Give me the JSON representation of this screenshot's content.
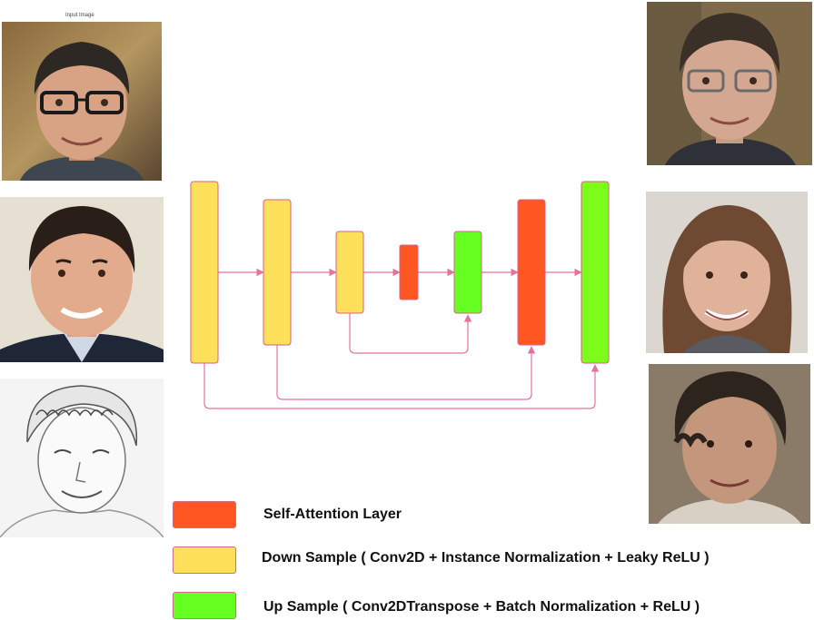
{
  "input_caption": "Input Image",
  "colors": {
    "self_attention": "#ff5722",
    "down_sample": "#ffe05a",
    "up_sample": "#66ff22",
    "connector": "#e8709a",
    "block_border": "#d9608a"
  },
  "inputs": [
    {
      "name": "input-face-man-glasses"
    },
    {
      "name": "input-face-man-dark-hair"
    },
    {
      "name": "input-sketch-face"
    }
  ],
  "outputs": [
    {
      "name": "output-face-man-glasses"
    },
    {
      "name": "output-face-woman"
    },
    {
      "name": "output-face-person-sketch-result"
    }
  ],
  "blocks": [
    {
      "name": "down-sample-block-1",
      "type": "down_sample"
    },
    {
      "name": "down-sample-block-2",
      "type": "down_sample"
    },
    {
      "name": "down-sample-block-3",
      "type": "down_sample"
    },
    {
      "name": "self-attention-bottleneck",
      "type": "self_attention"
    },
    {
      "name": "up-sample-block-1",
      "type": "up_sample"
    },
    {
      "name": "self-attention-block",
      "type": "self_attention"
    },
    {
      "name": "up-sample-block-2",
      "type": "up_sample"
    }
  ],
  "legend": {
    "self_attention_label": "Self-Attention Layer",
    "down_sample_label": "Down Sample ( Conv2D + Instance Normalization + Leaky ReLU )",
    "up_sample_label": "Up Sample ( Conv2DTranspose + Batch Normalization + ReLU )"
  }
}
